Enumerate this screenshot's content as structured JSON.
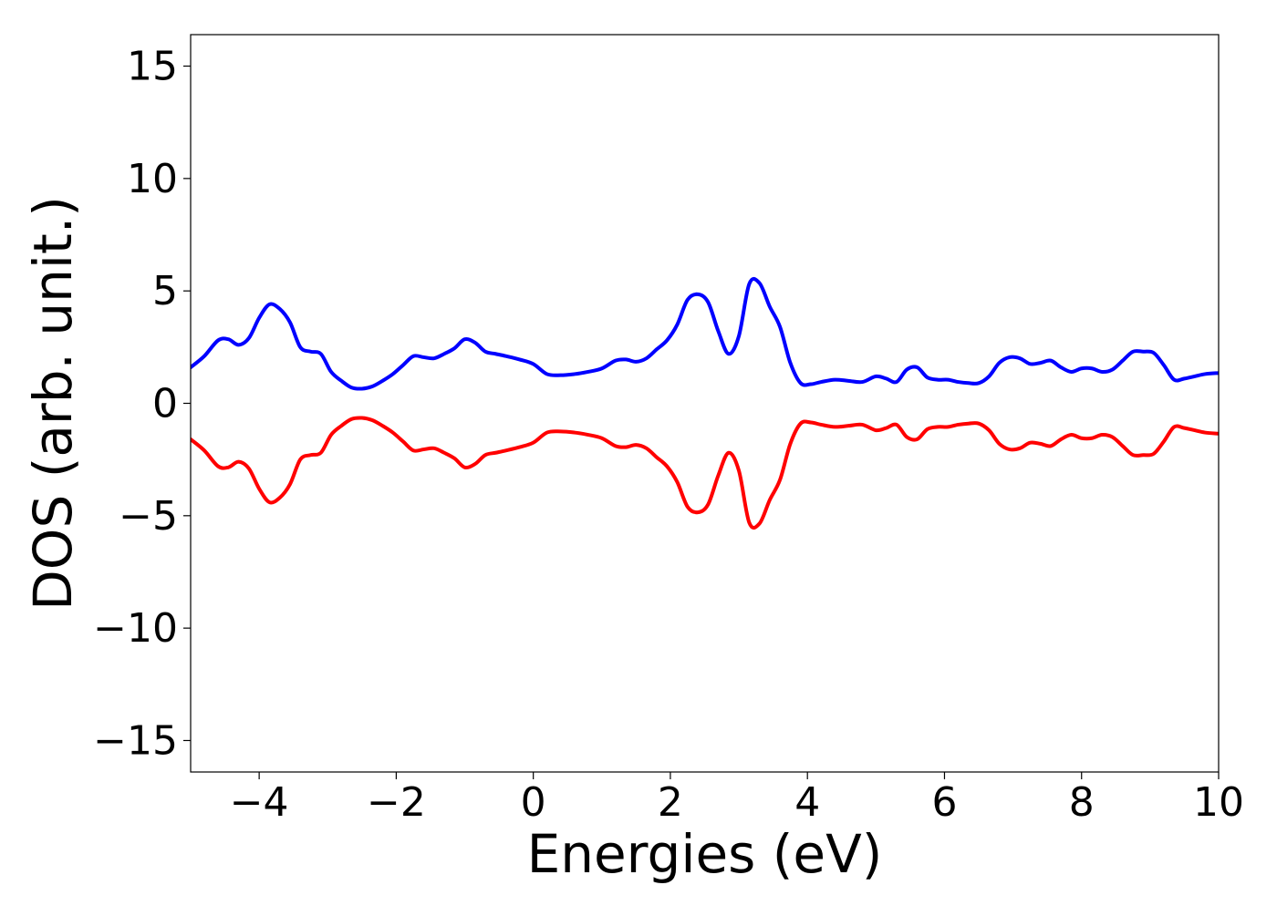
{
  "chart_data": {
    "type": "line",
    "title": "",
    "xlabel": "Energies (eV)",
    "ylabel": "DOS (arb. unit.)",
    "xlim": [
      -5,
      10
    ],
    "ylim": [
      -16.4,
      16.4
    ],
    "xticks": [
      -4,
      -2,
      0,
      2,
      4,
      6,
      8,
      10
    ],
    "xtick_labels": [
      "−4",
      "−2",
      "0",
      "2",
      "4",
      "6",
      "8",
      "10"
    ],
    "yticks": [
      15,
      10,
      5,
      0,
      -5,
      -10,
      -15
    ],
    "ytick_labels": [
      "15",
      "10",
      "5",
      "0",
      "−5",
      "−10",
      "−15"
    ],
    "grid": false,
    "legend": "none",
    "series": [
      {
        "color": "#0000ff",
        "x": [
          -5.0,
          -4.8,
          -4.6,
          -4.45,
          -4.3,
          -4.15,
          -4.0,
          -3.85,
          -3.7,
          -3.55,
          -3.4,
          -3.25,
          -3.1,
          -2.95,
          -2.8,
          -2.65,
          -2.5,
          -2.35,
          -2.2,
          -2.05,
          -1.9,
          -1.75,
          -1.6,
          -1.45,
          -1.3,
          -1.15,
          -1.0,
          -0.85,
          -0.7,
          -0.55,
          -0.4,
          -0.2,
          0.0,
          0.2,
          0.4,
          0.6,
          0.8,
          1.0,
          1.2,
          1.35,
          1.5,
          1.65,
          1.8,
          1.95,
          2.1,
          2.25,
          2.4,
          2.55,
          2.7,
          2.85,
          3.0,
          3.15,
          3.3,
          3.45,
          3.6,
          3.75,
          3.9,
          4.05,
          4.2,
          4.4,
          4.6,
          4.8,
          5.0,
          5.15,
          5.3,
          5.45,
          5.6,
          5.75,
          5.9,
          6.05,
          6.2,
          6.35,
          6.5,
          6.65,
          6.8,
          6.95,
          7.1,
          7.25,
          7.4,
          7.55,
          7.7,
          7.85,
          8.0,
          8.15,
          8.3,
          8.45,
          8.6,
          8.75,
          8.9,
          9.05,
          9.2,
          9.35,
          9.5,
          9.65,
          9.8,
          10.0
        ],
        "y": [
          1.6,
          2.1,
          2.8,
          2.85,
          2.6,
          2.9,
          3.8,
          4.4,
          4.2,
          3.6,
          2.5,
          2.3,
          2.2,
          1.4,
          1.0,
          0.7,
          0.65,
          0.75,
          1.0,
          1.3,
          1.7,
          2.1,
          2.05,
          2.0,
          2.2,
          2.45,
          2.85,
          2.7,
          2.3,
          2.2,
          2.1,
          1.95,
          1.75,
          1.3,
          1.25,
          1.3,
          1.4,
          1.55,
          1.9,
          1.95,
          1.85,
          2.0,
          2.4,
          2.8,
          3.5,
          4.6,
          4.85,
          4.5,
          3.2,
          2.2,
          3.0,
          5.3,
          5.35,
          4.3,
          3.4,
          1.8,
          0.9,
          0.85,
          0.95,
          1.05,
          1.0,
          0.95,
          1.2,
          1.1,
          0.95,
          1.5,
          1.6,
          1.15,
          1.05,
          1.05,
          0.95,
          0.9,
          0.9,
          1.2,
          1.8,
          2.05,
          2.0,
          1.75,
          1.8,
          1.9,
          1.6,
          1.4,
          1.55,
          1.55,
          1.4,
          1.5,
          1.9,
          2.3,
          2.3,
          2.25,
          1.7,
          1.05,
          1.1,
          1.2,
          1.3,
          1.35
        ]
      },
      {
        "color": "#ff0000",
        "x": [
          -5.0,
          -4.8,
          -4.6,
          -4.45,
          -4.3,
          -4.15,
          -4.0,
          -3.85,
          -3.7,
          -3.55,
          -3.4,
          -3.25,
          -3.1,
          -2.95,
          -2.8,
          -2.65,
          -2.5,
          -2.35,
          -2.2,
          -2.05,
          -1.9,
          -1.75,
          -1.6,
          -1.45,
          -1.3,
          -1.15,
          -1.0,
          -0.85,
          -0.7,
          -0.55,
          -0.4,
          -0.2,
          0.0,
          0.2,
          0.4,
          0.6,
          0.8,
          1.0,
          1.2,
          1.35,
          1.5,
          1.65,
          1.8,
          1.95,
          2.1,
          2.25,
          2.4,
          2.55,
          2.7,
          2.85,
          3.0,
          3.15,
          3.3,
          3.45,
          3.6,
          3.75,
          3.9,
          4.05,
          4.2,
          4.4,
          4.6,
          4.8,
          5.0,
          5.15,
          5.3,
          5.45,
          5.6,
          5.75,
          5.9,
          6.05,
          6.2,
          6.35,
          6.5,
          6.65,
          6.8,
          6.95,
          7.1,
          7.25,
          7.4,
          7.55,
          7.7,
          7.85,
          8.0,
          8.15,
          8.3,
          8.45,
          8.6,
          8.75,
          8.9,
          9.05,
          9.2,
          9.35,
          9.5,
          9.65,
          9.8,
          10.0
        ],
        "y": [
          -1.6,
          -2.1,
          -2.8,
          -2.85,
          -2.6,
          -2.9,
          -3.8,
          -4.4,
          -4.2,
          -3.6,
          -2.5,
          -2.3,
          -2.2,
          -1.4,
          -1.0,
          -0.7,
          -0.65,
          -0.75,
          -1.0,
          -1.3,
          -1.7,
          -2.1,
          -2.05,
          -2.0,
          -2.2,
          -2.45,
          -2.85,
          -2.7,
          -2.3,
          -2.2,
          -2.1,
          -1.95,
          -1.75,
          -1.3,
          -1.25,
          -1.3,
          -1.4,
          -1.55,
          -1.9,
          -1.95,
          -1.85,
          -2.0,
          -2.4,
          -2.8,
          -3.5,
          -4.6,
          -4.85,
          -4.5,
          -3.2,
          -2.2,
          -3.0,
          -5.3,
          -5.35,
          -4.3,
          -3.4,
          -1.8,
          -0.9,
          -0.85,
          -0.95,
          -1.05,
          -1.0,
          -0.95,
          -1.2,
          -1.1,
          -0.95,
          -1.5,
          -1.6,
          -1.15,
          -1.05,
          -1.05,
          -0.95,
          -0.9,
          -0.9,
          -1.2,
          -1.8,
          -2.05,
          -2.0,
          -1.75,
          -1.8,
          -1.9,
          -1.6,
          -1.4,
          -1.55,
          -1.55,
          -1.4,
          -1.5,
          -1.9,
          -2.3,
          -2.3,
          -2.25,
          -1.7,
          -1.05,
          -1.1,
          -1.2,
          -1.3,
          -1.35
        ]
      }
    ]
  }
}
